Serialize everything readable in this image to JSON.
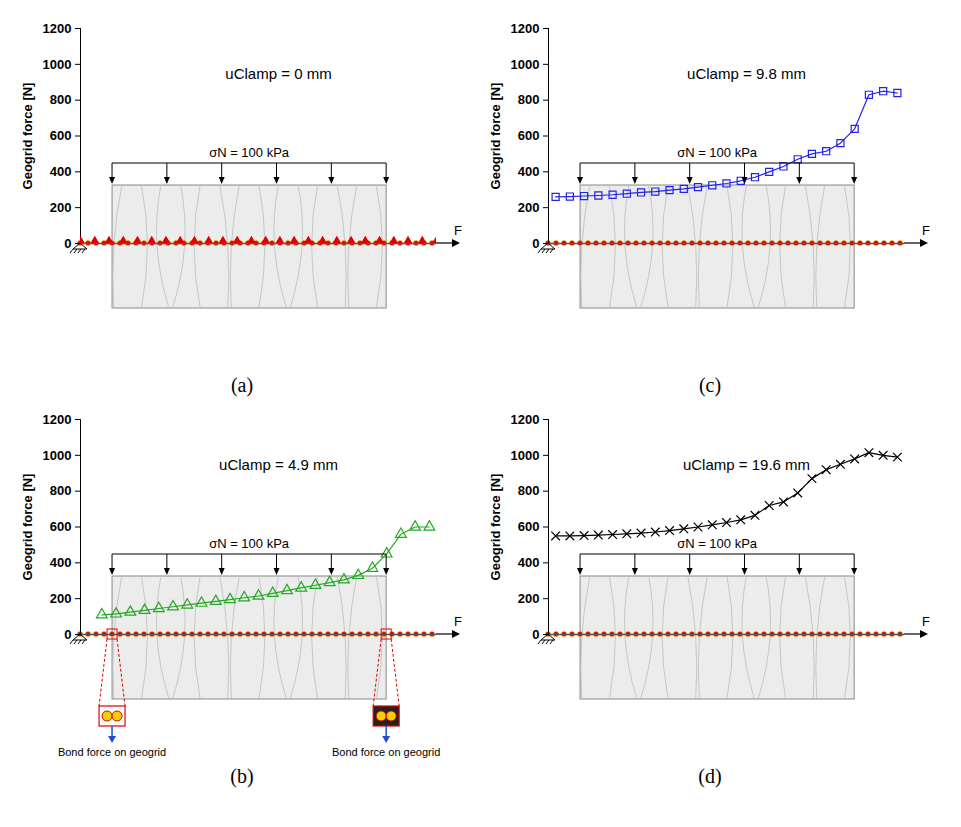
{
  "chart_data": [
    {
      "type": "line",
      "panel_label": "(a)",
      "title": "uClamp = 0 mm",
      "y_label": "Geogrid force [N]",
      "load_label": "σN = 100 kPa",
      "force_label": "F",
      "xlim": [
        0,
        100
      ],
      "ylim": [
        0,
        1200
      ],
      "yticks": [
        0,
        200,
        400,
        600,
        800,
        1000,
        1200
      ],
      "tick_labels": "y",
      "color": "#e00000",
      "marker": "diamond",
      "x": [
        0,
        4,
        8,
        12,
        16,
        20,
        24,
        28,
        32,
        36,
        40,
        44,
        48,
        52,
        56,
        60,
        64,
        68,
        72,
        76,
        80,
        84,
        88,
        92,
        96,
        100
      ],
      "values": [
        0,
        0,
        0,
        0,
        0,
        0,
        0,
        0,
        0,
        0,
        0,
        0,
        0,
        0,
        0,
        0,
        0,
        0,
        0,
        0,
        0,
        0,
        0,
        0,
        0,
        0
      ]
    },
    {
      "type": "line",
      "panel_label": "(b)",
      "title": "uClamp = 4.9 mm",
      "y_label": "Geogrid force [N]",
      "load_label": "σN = 100 kPa",
      "force_label": "F",
      "annotations": [
        "Bond force on geogrid",
        "Bond force on geogrid"
      ],
      "xlim": [
        0,
        100
      ],
      "ylim": [
        0,
        1200
      ],
      "yticks": [
        0,
        200,
        400,
        600,
        800,
        1000,
        1200
      ],
      "tick_labels": "y",
      "color": "#22aa22",
      "marker": "triangle",
      "x": [
        6,
        10,
        14,
        18,
        22,
        26,
        30,
        34,
        38,
        42,
        46,
        50,
        54,
        58,
        62,
        66,
        70,
        74,
        78,
        82,
        86,
        90,
        94,
        98
      ],
      "values": [
        110,
        115,
        125,
        135,
        145,
        155,
        165,
        175,
        185,
        195,
        205,
        215,
        230,
        245,
        260,
        275,
        290,
        305,
        330,
        370,
        450,
        560,
        600,
        600
      ]
    },
    {
      "type": "line",
      "panel_label": "(c)",
      "title": "uClamp = 9.8 mm",
      "y_label": "Geogrid force [N]",
      "load_label": "σN = 100 kPa",
      "force_label": "F",
      "xlim": [
        0,
        100
      ],
      "ylim": [
        0,
        1200
      ],
      "yticks": [
        0,
        200,
        400,
        600,
        800,
        1000,
        1200
      ],
      "tick_labels": "y",
      "color": "#2222ee",
      "marker": "square",
      "x": [
        2,
        6,
        10,
        14,
        18,
        22,
        26,
        30,
        34,
        38,
        42,
        46,
        50,
        54,
        58,
        62,
        66,
        70,
        74,
        78,
        82,
        86,
        90,
        94,
        98
      ],
      "values": [
        260,
        262,
        265,
        268,
        272,
        278,
        285,
        290,
        298,
        305,
        315,
        325,
        335,
        350,
        370,
        400,
        430,
        470,
        500,
        515,
        560,
        640,
        830,
        850,
        840
      ]
    },
    {
      "type": "line",
      "panel_label": "(d)",
      "title": "uClamp = 19.6 mm",
      "y_label": "Geogrid force [N]",
      "load_label": "σN = 100 kPa",
      "force_label": "F",
      "xlim": [
        0,
        100
      ],
      "ylim": [
        0,
        1200
      ],
      "yticks": [
        0,
        200,
        400,
        600,
        800,
        1000,
        1200
      ],
      "tick_labels": "y",
      "color": "#000000",
      "marker": "x",
      "x": [
        2,
        6,
        10,
        14,
        18,
        22,
        26,
        30,
        34,
        38,
        42,
        46,
        50,
        54,
        58,
        62,
        66,
        70,
        74,
        78,
        82,
        86,
        90,
        94,
        98
      ],
      "values": [
        550,
        550,
        552,
        555,
        558,
        562,
        566,
        572,
        580,
        590,
        600,
        612,
        625,
        640,
        665,
        720,
        740,
        790,
        870,
        920,
        950,
        980,
        1015,
        1000,
        990
      ]
    }
  ]
}
